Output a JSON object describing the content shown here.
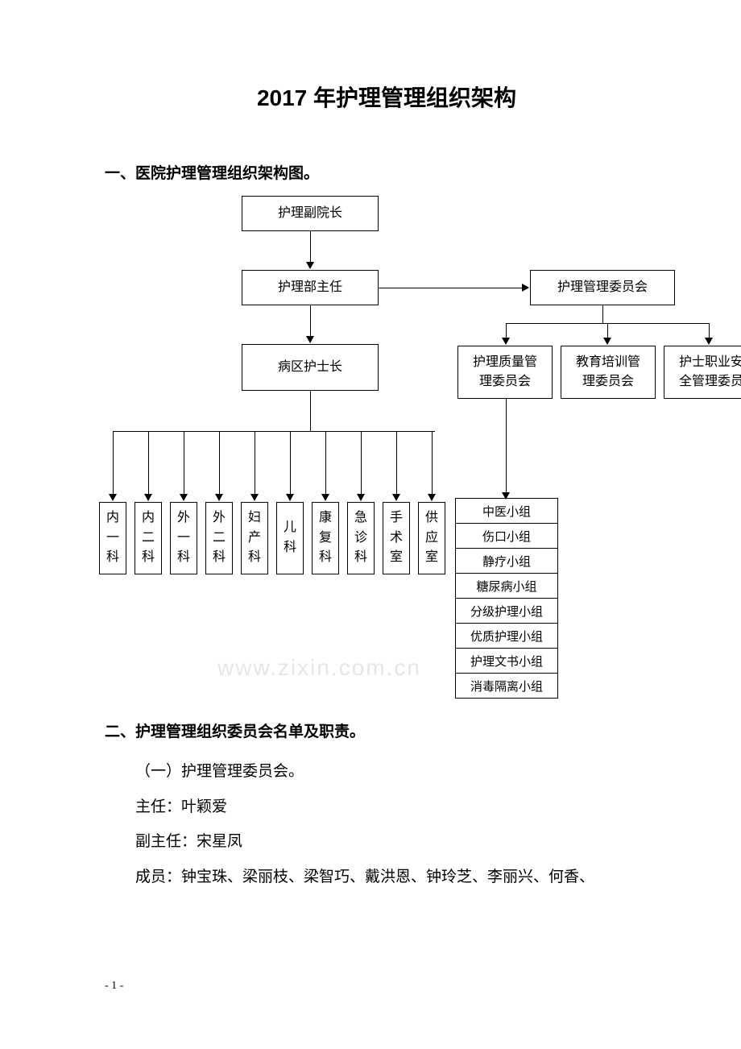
{
  "title": "2017 年护理管理组织架构",
  "section1": "一、医院护理管理组织架构图。",
  "section2": "二、护理管理组织委员会名单及职责。",
  "body": {
    "l1": "（一）护理管理委员会。",
    "l2": "主任：叶颖爱",
    "l3": "副主任：宋星凤",
    "l4": "成员：钟宝珠、梁丽枝、梁智巧、戴洪恩、钟玲芝、李丽兴、何香、"
  },
  "footer": "- 1 -",
  "watermark": "www.zixin.com.cn",
  "chart": {
    "top1": "护理副院长",
    "top2": "护理部主任",
    "top3": "病区护士长",
    "right1": "护理管理委员会",
    "sub1a": "护理质量管",
    "sub1b": "理委员会",
    "sub2a": "教育培训管",
    "sub2b": "理委员会",
    "sub3a": "护士职业安",
    "sub3b": "全管理委员",
    "depts": [
      "内一科",
      "内二科",
      "外一科",
      "外二科",
      "妇产科",
      "儿科",
      "康复科",
      "急诊科",
      "手术室",
      "供应室"
    ],
    "groups": [
      "中医小组",
      "伤口小组",
      "静疗小组",
      "糖尿病小组",
      "分级护理小组",
      "优质护理小组",
      "护理文书小组",
      "消毒隔离小组"
    ]
  }
}
